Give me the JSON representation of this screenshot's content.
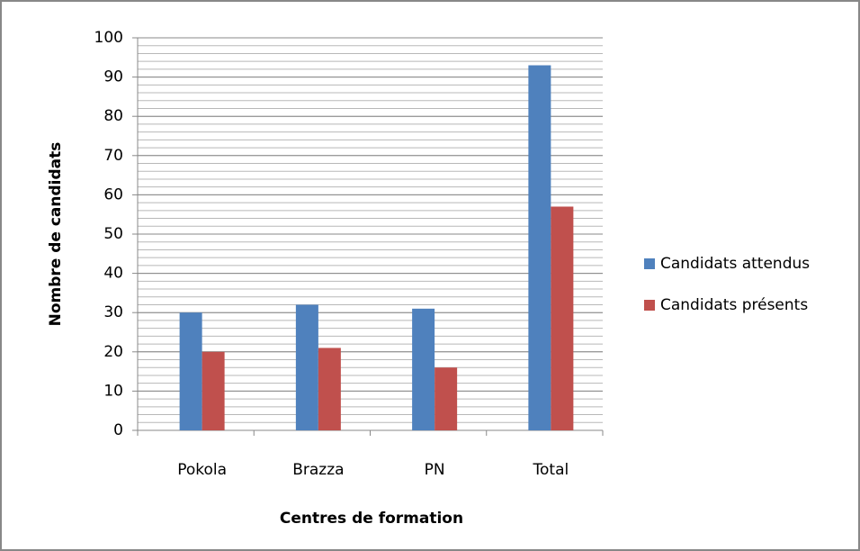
{
  "chart_data": {
    "type": "bar",
    "categories": [
      "Pokola",
      "Brazza",
      "PN",
      "Total"
    ],
    "series": [
      {
        "name": "Candidats attendus",
        "color": "#4f81bd",
        "values": [
          30,
          32,
          31,
          93
        ]
      },
      {
        "name": "Candidats présents",
        "color": "#c0504d",
        "values": [
          20,
          21,
          16,
          57
        ]
      }
    ],
    "x_label": "Centres de formation",
    "y_label": "Nombre de candidats",
    "ylim": [
      0,
      100
    ],
    "yticks": [
      0,
      10,
      20,
      30,
      40,
      50,
      60,
      70,
      80,
      90,
      100
    ],
    "grid": true,
    "minor_grid_step": 2,
    "legend": "right"
  }
}
